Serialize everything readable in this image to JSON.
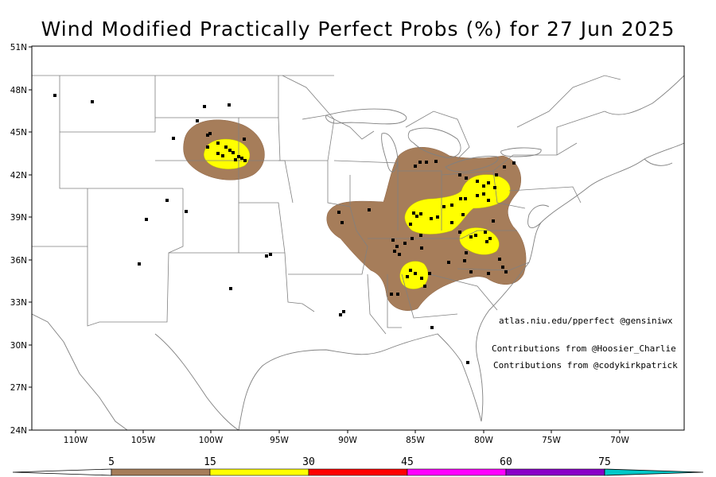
{
  "title": "Wind Modified Practically Perfect Probs (%) for 27 Jun 2025",
  "annotations": {
    "source": "atlas.niu.edu/pperfect @gensiniwx",
    "contrib1": "Contributions from @Hoosier_Charlie",
    "contrib2": "Contributions from @codykirkpatrick"
  },
  "lat_labels": [
    "51N",
    "48N",
    "45N",
    "42N",
    "39N",
    "36N",
    "33N",
    "30N",
    "27N",
    "24N"
  ],
  "lon_labels": [
    "110W",
    "105W",
    "100W",
    "95W",
    "90W",
    "85W",
    "80W",
    "75W",
    "70W"
  ],
  "colorbar": {
    "ticks": [
      "5",
      "15",
      "30",
      "45",
      "60",
      "75"
    ],
    "colors": [
      "#a67d5a",
      "#ffff00",
      "#ff0000",
      "#ff00ff",
      "#8a00c8",
      "#00c8c8"
    ]
  },
  "colors": {
    "brown": "#a67d5a",
    "yellow": "#ffff00",
    "report": "#000000",
    "border": "#808080"
  }
}
